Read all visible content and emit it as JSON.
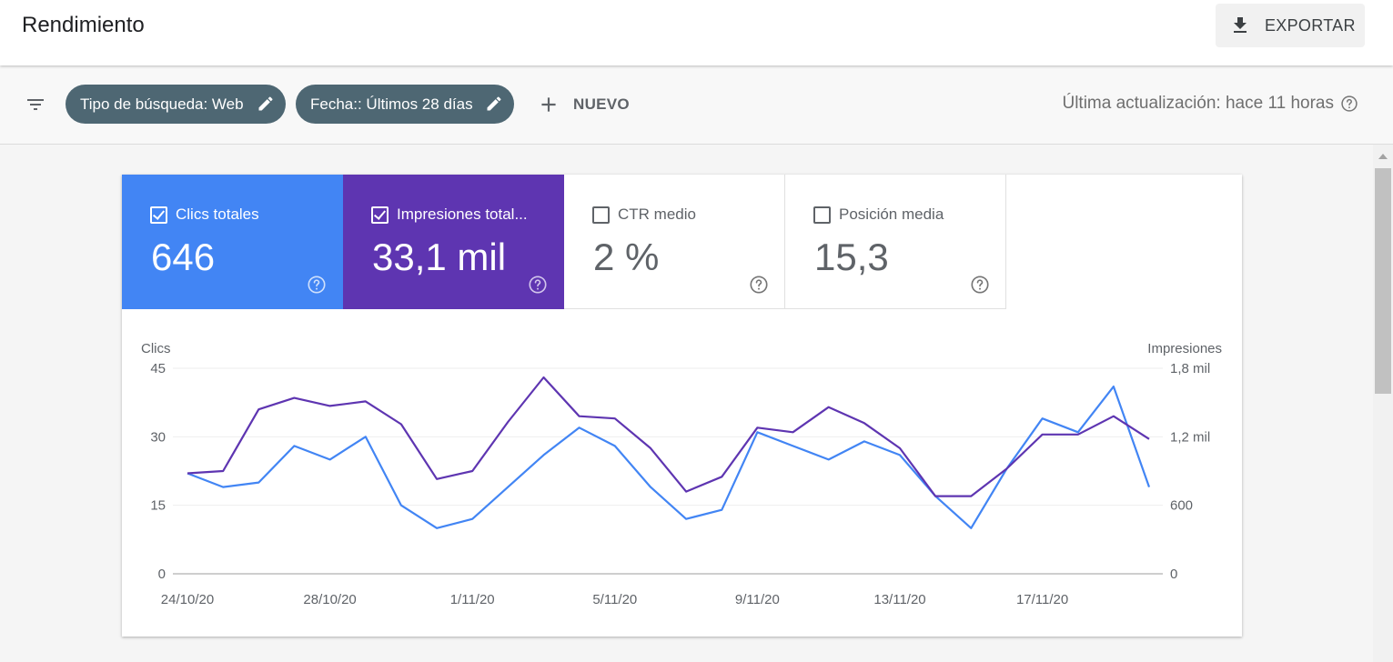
{
  "header": {
    "title": "Rendimiento",
    "export_label": "EXPORTAR"
  },
  "filters": {
    "chips": [
      {
        "label": "Tipo de búsqueda: Web"
      },
      {
        "label": "Fecha:: Últimos 28 días"
      }
    ],
    "new_label": "NUEVO",
    "last_update": "Última actualización: hace 11 horas"
  },
  "metrics": [
    {
      "label": "Clics totales",
      "value": "646",
      "checked": true,
      "color": "#4285f4"
    },
    {
      "label": "Impresiones total...",
      "value": "33,1 mil",
      "checked": true,
      "color": "#5e35b1"
    },
    {
      "label": "CTR medio",
      "value": "2 %",
      "checked": false
    },
    {
      "label": "Posición media",
      "value": "15,3",
      "checked": false
    }
  ],
  "chart_data": {
    "type": "line",
    "y_left_label": "Clics",
    "y_right_label": "Impresiones",
    "y_left_ticks": [
      "0",
      "15",
      "30",
      "45"
    ],
    "y_right_ticks": [
      "0",
      "600",
      "1,2 mil",
      "1,8 mil"
    ],
    "ylim_left": [
      0,
      45
    ],
    "ylim_right": [
      0,
      1800
    ],
    "x_tick_labels": [
      "24/10/20",
      "28/10/20",
      "1/11/20",
      "5/11/20",
      "9/11/20",
      "13/11/20",
      "17/11/20"
    ],
    "x": [
      "24/10/20",
      "25/10/20",
      "26/10/20",
      "27/10/20",
      "28/10/20",
      "29/10/20",
      "30/10/20",
      "31/10/20",
      "1/11/20",
      "2/11/20",
      "3/11/20",
      "4/11/20",
      "5/11/20",
      "6/11/20",
      "7/11/20",
      "8/11/20",
      "9/11/20",
      "10/11/20",
      "11/11/20",
      "12/11/20",
      "13/11/20",
      "14/11/20",
      "15/11/20",
      "16/11/20",
      "17/11/20",
      "18/11/20",
      "19/11/20",
      "20/11/20"
    ],
    "grid": true,
    "series": [
      {
        "name": "Clics totales",
        "axis": "left",
        "color": "#4285f4",
        "values": [
          22,
          19,
          20,
          28,
          25,
          30,
          15,
          10,
          12,
          19,
          26,
          32,
          28,
          19,
          12,
          14,
          31,
          28,
          25,
          29,
          26,
          17,
          10,
          23,
          34,
          31,
          41,
          19
        ]
      },
      {
        "name": "Impresiones totales",
        "axis": "right",
        "color": "#5e35b1",
        "values": [
          880,
          900,
          1440,
          1540,
          1470,
          1510,
          1310,
          830,
          900,
          1330,
          1720,
          1380,
          1360,
          1100,
          720,
          850,
          1280,
          1240,
          1460,
          1320,
          1100,
          680,
          680,
          920,
          1220,
          1220,
          1380,
          1180
        ]
      }
    ]
  }
}
